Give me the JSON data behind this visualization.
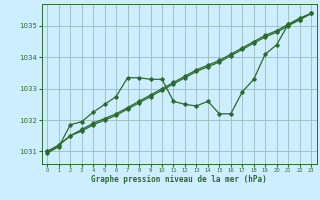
{
  "title": "Graphe pression niveau de la mer (hPa)",
  "bg_color": "#cceeff",
  "line_color": "#2d6a2d",
  "grid_color": "#99bbbb",
  "xlim": [
    -0.5,
    23.5
  ],
  "ylim": [
    1030.6,
    1035.7
  ],
  "yticks": [
    1031,
    1032,
    1033,
    1034,
    1035
  ],
  "xticks": [
    0,
    1,
    2,
    3,
    4,
    5,
    6,
    7,
    8,
    9,
    10,
    11,
    12,
    13,
    14,
    15,
    16,
    17,
    18,
    19,
    20,
    21,
    22,
    23
  ],
  "series_linear1": {
    "x": [
      0,
      1,
      2,
      3,
      4,
      5,
      6,
      7,
      8,
      9,
      10,
      11,
      12,
      13,
      14,
      15,
      16,
      17,
      18,
      19,
      20,
      21,
      22,
      23
    ],
    "y": [
      1031.0,
      1031.2,
      1031.5,
      1031.7,
      1031.9,
      1032.05,
      1032.2,
      1032.4,
      1032.6,
      1032.8,
      1033.0,
      1033.2,
      1033.4,
      1033.6,
      1033.75,
      1033.9,
      1034.1,
      1034.3,
      1034.5,
      1034.7,
      1034.85,
      1035.05,
      1035.25,
      1035.4
    ]
  },
  "series_linear2": {
    "x": [
      0,
      1,
      2,
      3,
      4,
      5,
      6,
      7,
      8,
      9,
      10,
      11,
      12,
      13,
      14,
      15,
      16,
      17,
      18,
      19,
      20,
      21,
      22,
      23
    ],
    "y": [
      1031.0,
      1031.2,
      1031.5,
      1031.65,
      1031.85,
      1032.0,
      1032.15,
      1032.35,
      1032.55,
      1032.75,
      1032.95,
      1033.15,
      1033.35,
      1033.55,
      1033.7,
      1033.85,
      1034.05,
      1034.25,
      1034.45,
      1034.65,
      1034.8,
      1035.0,
      1035.2,
      1035.4
    ]
  },
  "series_wavy": {
    "x": [
      0,
      1,
      2,
      3,
      4,
      5,
      6,
      7,
      8,
      9,
      10,
      11,
      12,
      13,
      14,
      15,
      16,
      17,
      18,
      19,
      20,
      21,
      22,
      23
    ],
    "y": [
      1030.95,
      1031.15,
      1031.85,
      1031.95,
      1032.25,
      1032.5,
      1032.75,
      1033.35,
      1033.35,
      1033.3,
      1033.3,
      1032.6,
      1032.5,
      1032.45,
      1032.6,
      1032.2,
      1032.2,
      1032.9,
      1033.3,
      1034.1,
      1034.4,
      1035.05,
      1035.2,
      1035.4
    ]
  }
}
